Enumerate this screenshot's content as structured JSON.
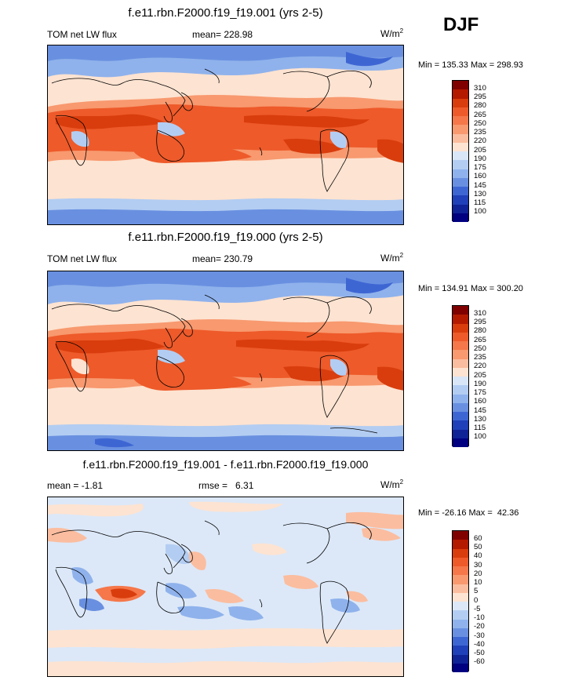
{
  "season": "DJF",
  "panels": [
    {
      "title": "f.e11.rbn.F2000.f19_f19.001 (yrs 2-5)",
      "left_label": "TOM net LW flux",
      "center_label": "mean= 228.98",
      "units": "W/m",
      "units_sup": "2",
      "minmax": "Min = 135.33 Max = 298.93",
      "colorbar_labels": [
        "310",
        "295",
        "280",
        "265",
        "250",
        "235",
        "220",
        "205",
        "190",
        "175",
        "160",
        "145",
        "130",
        "115",
        "100"
      ]
    },
    {
      "title": "f.e11.rbn.F2000.f19_f19.000 (yrs 2-5)",
      "left_label": "TOM net LW flux",
      "center_label": "mean= 230.79",
      "units": "W/m",
      "units_sup": "2",
      "minmax": "Min = 134.91 Max = 300.20",
      "colorbar_labels": [
        "310",
        "295",
        "280",
        "265",
        "250",
        "235",
        "220",
        "205",
        "190",
        "175",
        "160",
        "145",
        "130",
        "115",
        "100"
      ]
    },
    {
      "title": "f.e11.rbn.F2000.f19_f19.001 - f.e11.rbn.F2000.f19_f19.000",
      "left_label": "mean =  -1.81",
      "center_label": "rmse =   6.31",
      "units": "W/m",
      "units_sup": "2",
      "minmax": "Min = -26.16 Max =  42.36",
      "colorbar_labels": [
        "60",
        "50",
        "40",
        "30",
        "20",
        "10",
        "5",
        "0",
        "-5",
        "-10",
        "-20",
        "-30",
        "-40",
        "-50",
        "-60"
      ]
    }
  ],
  "colors": {
    "abs_scale": [
      "#800000",
      "#b31a00",
      "#d93d0d",
      "#ee5a2a",
      "#f5774a",
      "#f8996f",
      "#fbbd9f",
      "#fde3d1",
      "#d9e6f7",
      "#b3cdf2",
      "#8fb2ec",
      "#6990e0",
      "#3e66d3",
      "#1f40b8",
      "#0f2296",
      "#000080"
    ],
    "diff_scale": [
      "#800000",
      "#b31a00",
      "#d93d0d",
      "#ee5a2a",
      "#f5774a",
      "#f8996f",
      "#fbbd9f",
      "#fde3d1",
      "#dce8f8",
      "#b3cdf2",
      "#8fb2ec",
      "#6990e0",
      "#3e66d3",
      "#1f40b8",
      "#0f2296",
      "#000080"
    ]
  },
  "chart_data": [
    {
      "type": "heatmap",
      "title": "f.e11.rbn.F2000.f19_f19.001 (yrs 2-5)",
      "variable": "TOM net LW flux",
      "units": "W/m2",
      "mean": 228.98,
      "min": 135.33,
      "max": 298.93,
      "levels": [
        100,
        115,
        130,
        145,
        160,
        175,
        190,
        205,
        220,
        235,
        250,
        265,
        280,
        295,
        310
      ]
    },
    {
      "type": "heatmap",
      "title": "f.e11.rbn.F2000.f19_f19.000 (yrs 2-5)",
      "variable": "TOM net LW flux",
      "units": "W/m2",
      "mean": 230.79,
      "min": 134.91,
      "max": 300.2,
      "levels": [
        100,
        115,
        130,
        145,
        160,
        175,
        190,
        205,
        220,
        235,
        250,
        265,
        280,
        295,
        310
      ]
    },
    {
      "type": "heatmap",
      "title": "f.e11.rbn.F2000.f19_f19.001 - f.e11.rbn.F2000.f19_f19.000",
      "units": "W/m2",
      "mean": -1.81,
      "rmse": 6.31,
      "min": -26.16,
      "max": 42.36,
      "levels": [
        -60,
        -50,
        -40,
        -30,
        -20,
        -10,
        -5,
        0,
        5,
        10,
        20,
        30,
        40,
        50,
        60
      ]
    }
  ]
}
